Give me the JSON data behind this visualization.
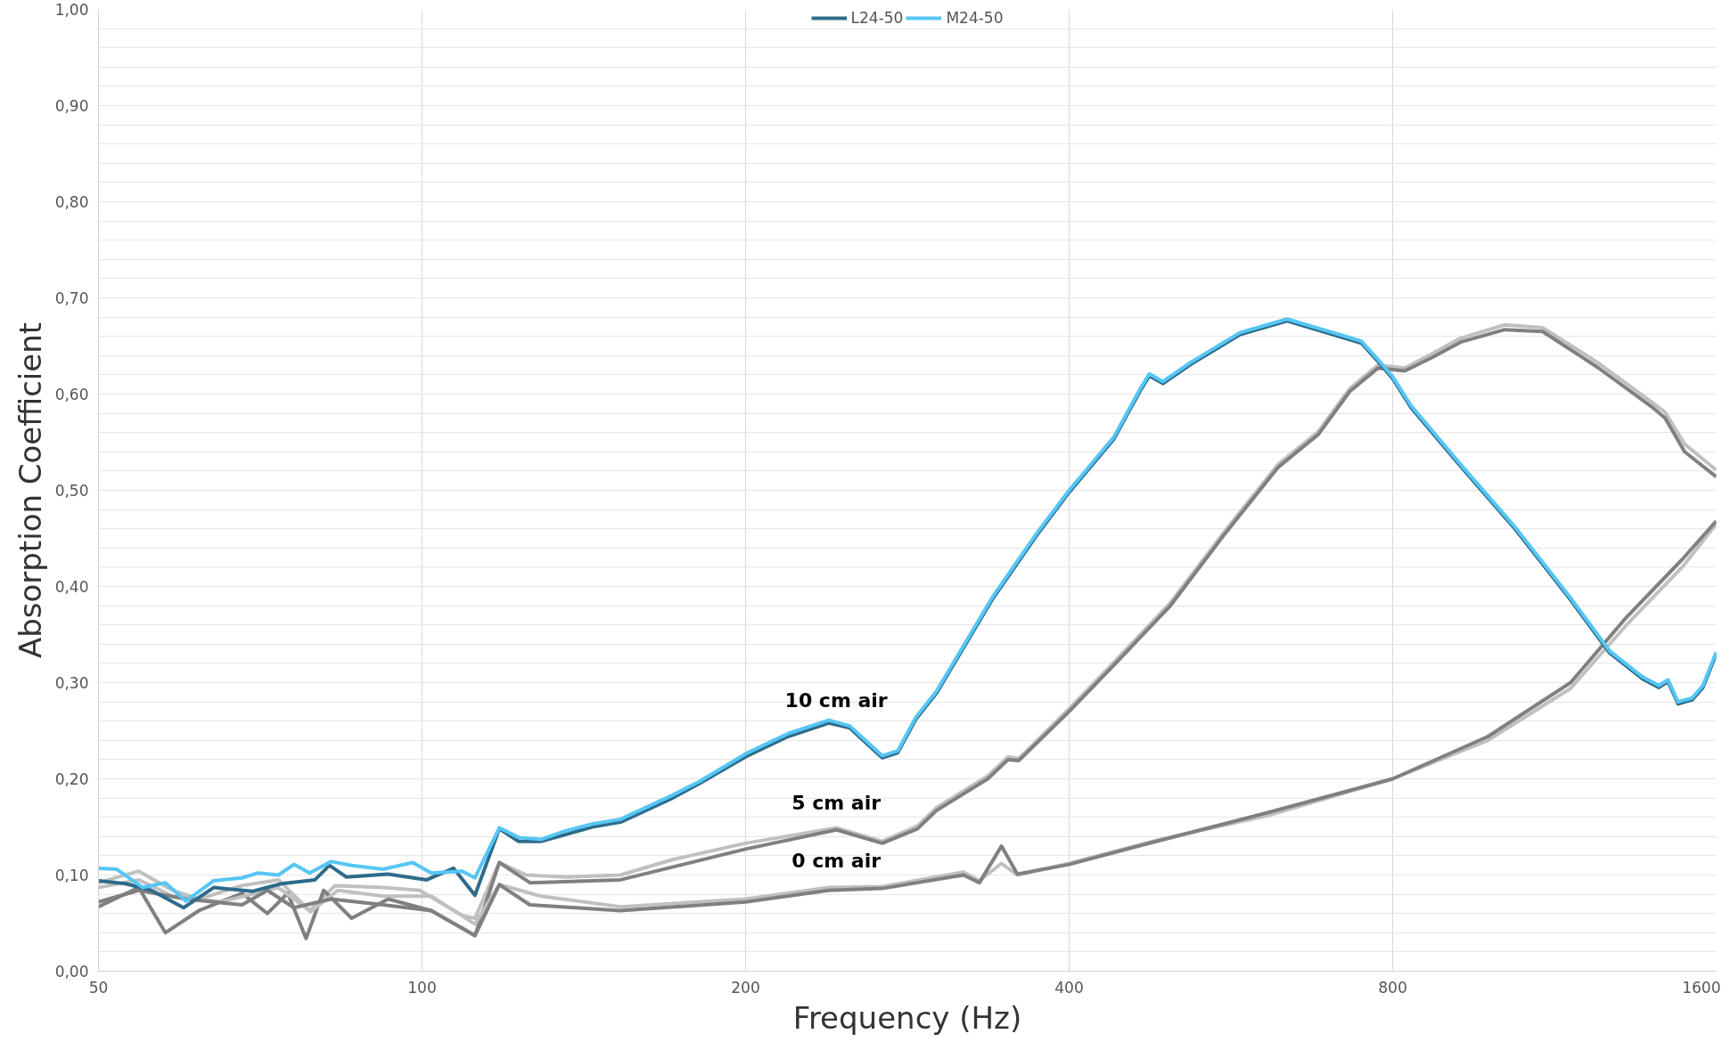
{
  "chart_data": {
    "type": "line",
    "xlabel": "Frequency (Hz)",
    "ylabel": "Absorption Coefficient",
    "log": "x",
    "grid": true,
    "legend": "top",
    "line_style": "solid",
    "marker": "none",
    "xlim": [
      50,
      1600
    ],
    "xticks": [
      50,
      100,
      200,
      400,
      800,
      1600
    ],
    "ylim": [
      0,
      1
    ],
    "yticks": [
      {
        "value": 0,
        "label": "0,00"
      },
      {
        "value": 0.02,
        "label": null
      },
      {
        "value": 0.04,
        "label": null
      },
      {
        "value": 0.06,
        "label": null
      },
      {
        "value": 0.08,
        "label": null
      },
      {
        "value": 0.1,
        "label": "0,10"
      },
      {
        "value": 0.12,
        "label": null
      },
      {
        "value": 0.14,
        "label": null
      },
      {
        "value": 0.16,
        "label": null
      },
      {
        "value": 0.18,
        "label": null
      },
      {
        "value": 0.2,
        "label": "0,20"
      },
      {
        "value": 0.22,
        "label": null
      },
      {
        "value": 0.24,
        "label": null
      },
      {
        "value": 0.26,
        "label": null
      },
      {
        "value": 0.28,
        "label": null
      },
      {
        "value": 0.3,
        "label": "0,30"
      },
      {
        "value": 0.32,
        "label": null
      },
      {
        "value": 0.34,
        "label": null
      },
      {
        "value": 0.36,
        "label": null
      },
      {
        "value": 0.38,
        "label": null
      },
      {
        "value": 0.4,
        "label": "0,40"
      },
      {
        "value": 0.42,
        "label": null
      },
      {
        "value": 0.44,
        "label": null
      },
      {
        "value": 0.46,
        "label": null
      },
      {
        "value": 0.48,
        "label": null
      },
      {
        "value": 0.5,
        "label": "0,50"
      },
      {
        "value": 0.52,
        "label": null
      },
      {
        "value": 0.54,
        "label": null
      },
      {
        "value": 0.56,
        "label": null
      },
      {
        "value": 0.58,
        "label": null
      },
      {
        "value": 0.6,
        "label": "0,60"
      },
      {
        "value": 0.62,
        "label": null
      },
      {
        "value": 0.64,
        "label": null
      },
      {
        "value": 0.66,
        "label": null
      },
      {
        "value": 0.68,
        "label": null
      },
      {
        "value": 0.7,
        "label": "0,70"
      },
      {
        "value": 0.72,
        "label": null
      },
      {
        "value": 0.74,
        "label": null
      },
      {
        "value": 0.76,
        "label": null
      },
      {
        "value": 0.78,
        "label": null
      },
      {
        "value": 0.8,
        "label": "0,80"
      },
      {
        "value": 0.82,
        "label": null
      },
      {
        "value": 0.84,
        "label": null
      },
      {
        "value": 0.86,
        "label": null
      },
      {
        "value": 0.88,
        "label": null
      },
      {
        "value": 0.9,
        "label": "0,90"
      },
      {
        "value": 0.92,
        "label": null
      },
      {
        "value": 0.94,
        "label": null
      },
      {
        "value": 0.96,
        "label": null
      },
      {
        "value": 0.98,
        "label": null
      },
      {
        "value": 1,
        "label": "1,00"
      }
    ],
    "annotations": [
      "10 cm air",
      "5 cm air",
      "0 cm air"
    ],
    "series": [
      {
        "color": "#c0c0c0",
        "x": [
          50,
          54.5,
          58.6,
          62,
          68,
          73.5,
          78.6,
          83,
          92,
          99.5,
          109,
          112,
          118,
          125,
          136,
          153,
          171,
          200,
          243,
          268,
          289,
          301,
          336,
          351,
          359,
          400,
          440,
          496,
          556,
          626,
          682,
          730,
          775,
          821,
          870,
          925,
          1017,
          1103,
          1240,
          1400,
          1434,
          1495,
          1600
        ],
        "values": [
          0.092,
          0.104,
          0.084,
          0.075,
          0.089,
          0.095,
          0.063,
          0.089,
          0.087,
          0.084,
          0.058,
          0.055,
          0.113,
          0.1,
          0.098,
          0.1,
          0.116,
          0.133,
          0.149,
          0.135,
          0.151,
          0.17,
          0.203,
          0.223,
          0.221,
          0.273,
          0.321,
          0.382,
          0.455,
          0.527,
          0.561,
          0.606,
          0.63,
          0.627,
          0.642,
          0.658,
          0.672,
          0.669,
          0.633,
          0.59,
          0.581,
          0.548,
          0.521
        ]
      },
      {
        "color": "#808080",
        "x": [
          50,
          54.5,
          57.7,
          62,
          68,
          71.8,
          75,
          78,
          81,
          86,
          93,
          102,
          112,
          118,
          126,
          153,
          200,
          243,
          268,
          289,
          301,
          336,
          351,
          359,
          400,
          440,
          496,
          556,
          626,
          682,
          730,
          775,
          821,
          870,
          925,
          1017,
          1103,
          1240,
          1400,
          1434,
          1495,
          1600
        ],
        "values": [
          0.067,
          0.087,
          0.04,
          0.063,
          0.081,
          0.06,
          0.081,
          0.034,
          0.084,
          0.055,
          0.075,
          0.063,
          0.037,
          0.113,
          0.092,
          0.095,
          0.127,
          0.147,
          0.133,
          0.148,
          0.167,
          0.2,
          0.22,
          0.219,
          0.27,
          0.318,
          0.379,
          0.452,
          0.524,
          0.558,
          0.603,
          0.627,
          0.624,
          0.638,
          0.654,
          0.667,
          0.665,
          0.628,
          0.585,
          0.575,
          0.54,
          0.514
        ]
      },
      {
        "color": "#c0c0c0",
        "x": [
          50,
          54.5,
          58.6,
          65,
          73.5,
          78.8,
          83.5,
          92,
          102,
          112,
          118,
          129,
          153,
          200,
          239,
          268,
          319,
          330,
          346,
          358,
          400,
          482,
          613,
          800,
          981,
          1171,
          1320,
          1487,
          1600
        ],
        "values": [
          0.087,
          0.095,
          0.078,
          0.072,
          0.087,
          0.062,
          0.084,
          0.078,
          0.078,
          0.049,
          0.09,
          0.078,
          0.067,
          0.075,
          0.087,
          0.088,
          0.103,
          0.094,
          0.112,
          0.1,
          0.112,
          0.136,
          0.162,
          0.2,
          0.24,
          0.294,
          0.36,
          0.42,
          0.465
        ]
      },
      {
        "color": "#808080",
        "x": [
          50,
          54.5,
          60.3,
          68,
          71.8,
          76,
          82.3,
          92,
          102,
          112,
          118,
          126,
          153,
          200,
          239,
          268,
          319,
          330,
          346,
          358,
          400,
          482,
          613,
          800,
          981,
          1171,
          1320,
          1487,
          1600
        ],
        "values": [
          0.072,
          0.084,
          0.075,
          0.069,
          0.084,
          0.066,
          0.075,
          0.069,
          0.063,
          0.037,
          0.09,
          0.069,
          0.063,
          0.072,
          0.084,
          0.086,
          0.1,
          0.092,
          0.13,
          0.101,
          0.111,
          0.135,
          0.165,
          0.2,
          0.244,
          0.3,
          0.368,
          0.428,
          0.468
        ]
      },
      {
        "name": "L24-50",
        "color": "#2e6b8a",
        "x": [
          50,
          53,
          56,
          60,
          64,
          69.5,
          74,
          79.5,
          82,
          85,
          93,
          101,
          107,
          112,
          118,
          123,
          129,
          136,
          144,
          153,
          171,
          181,
          200,
          219,
          239,
          250,
          262,
          268,
          277,
          288,
          301,
          339,
          373,
          400,
          440,
          466,
          475,
          489,
          519,
          577,
          638,
          689,
          748,
          775,
          800,
          832,
          925,
          1041,
          1171,
          1273,
          1366,
          1415,
          1443,
          1474,
          1519,
          1555,
          1600
        ],
        "values": [
          0.094,
          0.091,
          0.084,
          0.066,
          0.087,
          0.083,
          0.091,
          0.095,
          0.11,
          0.098,
          0.101,
          0.095,
          0.107,
          0.079,
          0.148,
          0.135,
          0.135,
          0.142,
          0.15,
          0.155,
          0.18,
          0.195,
          0.223,
          0.244,
          0.258,
          0.253,
          0.232,
          0.222,
          0.227,
          0.262,
          0.289,
          0.386,
          0.453,
          0.498,
          0.553,
          0.604,
          0.619,
          0.611,
          0.631,
          0.662,
          0.676,
          0.665,
          0.653,
          0.634,
          0.616,
          0.586,
          0.525,
          0.459,
          0.386,
          0.331,
          0.304,
          0.295,
          0.301,
          0.278,
          0.282,
          0.295,
          0.33
        ]
      },
      {
        "name": "M24-50",
        "color": "#55c6f5",
        "x": [
          50,
          52,
          55,
          57.7,
          60.3,
          64,
          68,
          70.3,
          73.5,
          76,
          78.6,
          82.3,
          86,
          92,
          98,
          102,
          109,
          112,
          118,
          123,
          129,
          136,
          144,
          153,
          171,
          181,
          200,
          219,
          239,
          250,
          262,
          268,
          277,
          288,
          301,
          339,
          373,
          400,
          440,
          466,
          475,
          489,
          519,
          577,
          638,
          689,
          748,
          775,
          800,
          832,
          925,
          1041,
          1171,
          1273,
          1366,
          1415,
          1443,
          1474,
          1519,
          1555,
          1600
        ],
        "values": [
          0.107,
          0.106,
          0.087,
          0.092,
          0.073,
          0.094,
          0.097,
          0.102,
          0.1,
          0.111,
          0.102,
          0.114,
          0.11,
          0.106,
          0.113,
          0.102,
          0.104,
          0.097,
          0.149,
          0.139,
          0.137,
          0.146,
          0.153,
          0.158,
          0.183,
          0.197,
          0.226,
          0.247,
          0.261,
          0.255,
          0.234,
          0.224,
          0.229,
          0.264,
          0.291,
          0.388,
          0.455,
          0.5,
          0.555,
          0.606,
          0.621,
          0.613,
          0.633,
          0.664,
          0.678,
          0.667,
          0.655,
          0.636,
          0.618,
          0.588,
          0.527,
          0.461,
          0.388,
          0.333,
          0.306,
          0.297,
          0.303,
          0.28,
          0.284,
          0.297,
          0.332
        ]
      }
    ]
  }
}
